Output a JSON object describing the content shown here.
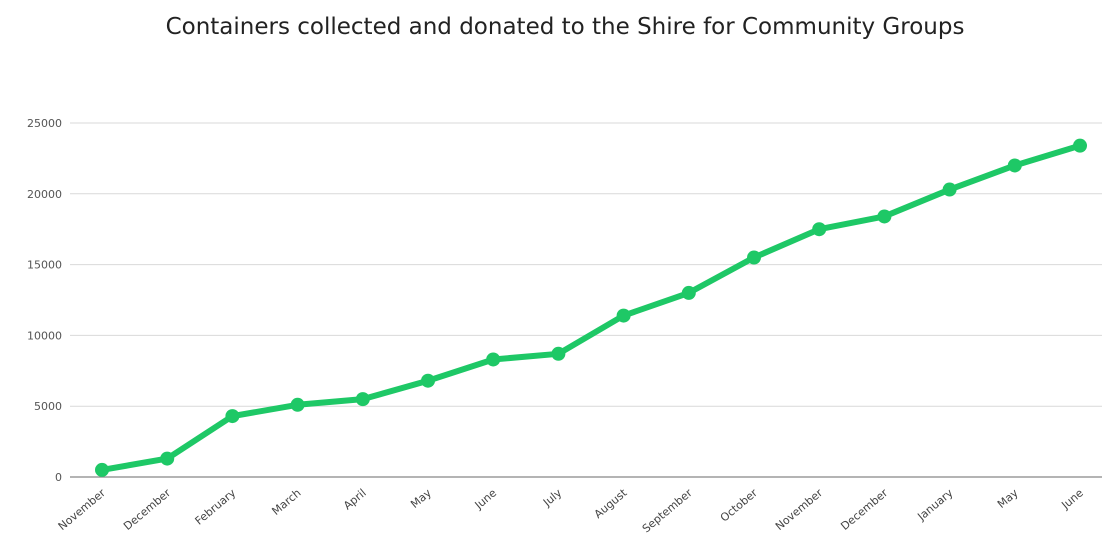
{
  "chart_data": {
    "type": "line",
    "title": "Containers collected and donated to the Shire for Community Groups",
    "xlabel": "",
    "ylabel": "",
    "categories": [
      "November",
      "December",
      "February",
      "March",
      "April",
      "May",
      "June",
      "July",
      "August",
      "September",
      "October",
      "November",
      "December",
      "January",
      "May",
      "June"
    ],
    "series": [
      {
        "values": [
          500,
          1300,
          4300,
          5100,
          5500,
          6800,
          8300,
          8700,
          11400,
          13000,
          15500,
          17500,
          18400,
          20300,
          22000,
          23400
        ]
      }
    ],
    "ylim": [
      0,
      25000
    ],
    "yticks": [
      0,
      5000,
      10000,
      15000,
      20000,
      25000
    ],
    "grid": true,
    "line_color": "#1ec866",
    "grid_color": "#d9d9d9",
    "axis_color": "#888888"
  }
}
